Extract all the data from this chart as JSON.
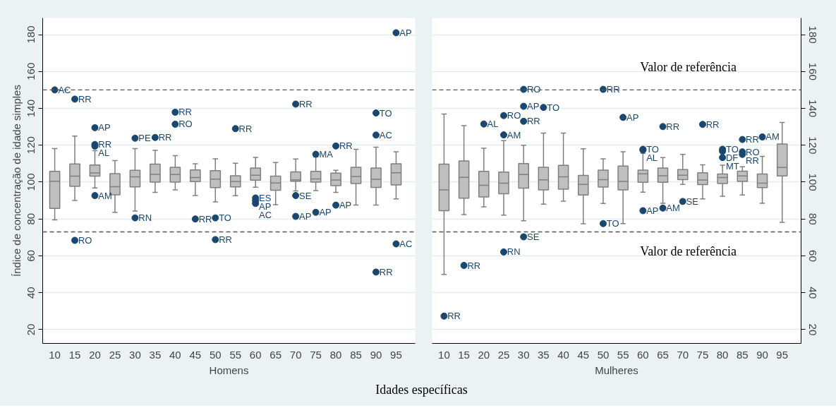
{
  "chart_data": [
    {
      "type": "box",
      "xlabel": "Homens",
      "ylabel": "Índice de concentração de idade simples",
      "categories": [
        "10",
        "15",
        "20",
        "25",
        "30",
        "35",
        "40",
        "45",
        "50",
        "55",
        "60",
        "65",
        "70",
        "75",
        "80",
        "85",
        "90",
        "95"
      ],
      "ylim": [
        12.5,
        189
      ],
      "yticks": [
        20,
        40,
        60,
        80,
        100,
        120,
        140,
        160,
        180
      ],
      "grid": "y",
      "ref_lines": [
        {
          "axis": "y",
          "value": 150,
          "line_style": "dashed"
        },
        {
          "axis": "y",
          "value": 73,
          "line_style": "dashed"
        }
      ],
      "series": [
        {
          "color": "#bfbfbf",
          "boxes": [
            {
              "low": 79.5,
              "q1": 85.7,
              "median": 100.5,
              "q3": 105.8,
              "high": 118.2
            },
            {
              "low": 90.0,
              "q1": 97.7,
              "median": 103.2,
              "q3": 109.8,
              "high": 125
            },
            {
              "low": 96.8,
              "q1": 103.2,
              "median": 105,
              "q3": 109.3,
              "high": 117
            },
            {
              "low": 83.6,
              "q1": 93.1,
              "median": 97.5,
              "q3": 104.6,
              "high": 111.7
            },
            {
              "low": 84.3,
              "q1": 97.4,
              "median": 102.9,
              "q3": 106.4,
              "high": 118.2
            },
            {
              "low": 94.4,
              "q1": 100,
              "median": 104.2,
              "q3": 109.7,
              "high": 117.2
            },
            {
              "low": 95.8,
              "q1": 100,
              "median": 104.1,
              "q3": 108,
              "high": 114.3
            },
            {
              "low": 92.7,
              "q1": 100.3,
              "median": 102.5,
              "q3": 106.6,
              "high": 109.9
            },
            {
              "low": 89.3,
              "q1": 97,
              "median": 101.6,
              "q3": 106.2,
              "high": 112.6
            },
            {
              "low": 92.6,
              "q1": 97.4,
              "median": 100.3,
              "q3": 103.4,
              "high": 110.2
            },
            {
              "low": 97.2,
              "q1": 101,
              "median": 103.7,
              "q3": 107.6,
              "high": 113.4
            },
            {
              "low": 87.7,
              "q1": 95.6,
              "median": 99.5,
              "q3": 103.2,
              "high": 110.6
            },
            {
              "low": 95.2,
              "q1": 100.5,
              "median": 101.2,
              "q3": 105.5,
              "high": 112.5
            },
            {
              "low": 95.4,
              "q1": 100,
              "median": 101.7,
              "q3": 105.8,
              "high": 113.7
            },
            {
              "low": 94.4,
              "q1": 98.1,
              "median": 101.1,
              "q3": 104.9,
              "high": 106.4
            },
            {
              "low": 87.5,
              "q1": 99.2,
              "median": 103,
              "q3": 108,
              "high": 117.8
            },
            {
              "low": 87.5,
              "q1": 97.1,
              "median": 101.5,
              "q3": 107.6,
              "high": 118.9
            },
            {
              "low": 90.9,
              "q1": 98.5,
              "median": 105.1,
              "q3": 109.9,
              "high": 116.4
            }
          ]
        },
        {
          "type": "scatter",
          "color": "#1a476f",
          "x": [
            "10",
            "15",
            "15",
            "20",
            "20",
            "20",
            "20",
            "30",
            "30",
            "35",
            "40",
            "40",
            "45",
            "50",
            "50",
            "55",
            "60",
            "60",
            "60",
            "70",
            "70",
            "70",
            "75",
            "75",
            "80",
            "80",
            "90",
            "90",
            "90",
            "95",
            "95"
          ],
          "values": [
            150,
            145,
            68.4,
            129.5,
            120.4,
            119.5,
            92.7,
            123.8,
            80.6,
            124.2,
            137.9,
            131.4,
            80,
            80.6,
            68.8,
            129,
            91.4,
            89.9,
            88.4,
            142.3,
            92.7,
            81.4,
            115.1,
            83.6,
            119.6,
            87.5,
            137.5,
            125.5,
            51.2,
            181,
            66.5
          ],
          "value_labels": [
            "AC",
            "RR",
            "RO",
            "AP",
            "RR",
            "AL",
            "AM",
            "PE",
            "RN",
            "RR",
            "RR",
            "RO",
            "RR",
            "TO",
            "RR",
            "RR",
            "ES",
            "AP",
            "AC",
            "RR",
            "SE",
            "AP",
            "MA",
            "AP",
            "RR",
            "AP",
            "TO",
            "AC",
            "RR",
            "AP",
            "AC"
          ]
        }
      ],
      "annotations": [
        "Idades específicas"
      ]
    },
    {
      "type": "box",
      "xlabel": "Mulheres",
      "categories": [
        "10",
        "15",
        "20",
        "25",
        "30",
        "35",
        "40",
        "45",
        "50",
        "55",
        "60",
        "65",
        "70",
        "75",
        "80",
        "85",
        "90",
        "95"
      ],
      "ylim": [
        12.5,
        189
      ],
      "yticks": [
        20,
        40,
        60,
        80,
        100,
        120,
        140,
        160,
        180
      ],
      "grid": "y",
      "ref_lines": [
        {
          "axis": "y",
          "value": 150,
          "line_style": "dashed",
          "label": "Valor de referência"
        },
        {
          "axis": "y",
          "value": 73,
          "line_style": "dashed",
          "label": "Valor de referência"
        }
      ],
      "series": [
        {
          "color": "#bfbfbf",
          "boxes": [
            {
              "low": 49.9,
              "q1": 84.5,
              "median": 95.8,
              "q3": 109.7,
              "high": 136.9
            },
            {
              "low": 82.4,
              "q1": 91.3,
              "median": 102.6,
              "q3": 111.5,
              "high": 130.6
            },
            {
              "low": 86.6,
              "q1": 91.9,
              "median": 98.3,
              "q3": 105.8,
              "high": 118.4
            },
            {
              "low": 82.1,
              "q1": 93.7,
              "median": 99.4,
              "q3": 105.4,
              "high": 122.5
            },
            {
              "low": 79,
              "q1": 96.7,
              "median": 104.1,
              "q3": 110,
              "high": 120
            },
            {
              "low": 88,
              "q1": 95.8,
              "median": 101.2,
              "q3": 108,
              "high": 126.6
            },
            {
              "low": 89.6,
              "q1": 96.2,
              "median": 102.9,
              "q3": 109.1,
              "high": 126.6
            },
            {
              "low": 77.4,
              "q1": 93,
              "median": 98.7,
              "q3": 103.6,
              "high": 118.1
            },
            {
              "low": 88.4,
              "q1": 97.3,
              "median": 101.3,
              "q3": 106.5,
              "high": 112.6
            },
            {
              "low": 77.5,
              "q1": 95.8,
              "median": 100.4,
              "q3": 108.7,
              "high": 116.4
            },
            {
              "low": 94.5,
              "q1": 99.9,
              "median": 104.5,
              "q3": 106.5,
              "high": 115.6
            },
            {
              "low": 88.5,
              "q1": 99.9,
              "median": 103.4,
              "q3": 107.6,
              "high": 113.3
            },
            {
              "low": 98.7,
              "q1": 101.3,
              "median": 103.7,
              "q3": 106.8,
              "high": 115
            },
            {
              "low": 90.9,
              "q1": 98.6,
              "median": 101.1,
              "q3": 105.1,
              "high": 109.4
            },
            {
              "low": 92.3,
              "q1": 99.2,
              "median": 102.5,
              "q3": 104.4,
              "high": 109.2
            },
            {
              "low": 93,
              "q1": 100.4,
              "median": 103.3,
              "q3": 105.9,
              "high": 108.3
            },
            {
              "low": 88.5,
              "q1": 97,
              "median": 99.4,
              "q3": 104.4,
              "high": 114
            },
            {
              "low": 78.2,
              "q1": 103.3,
              "median": 107.9,
              "q3": 120.7,
              "high": 132.3
            }
          ]
        },
        {
          "type": "scatter",
          "color": "#1a476f",
          "x": [
            "10",
            "15",
            "20",
            "25",
            "25",
            "25",
            "30",
            "30",
            "30",
            "30",
            "35",
            "50",
            "50",
            "55",
            "60",
            "60",
            "60",
            "65",
            "65",
            "70",
            "75",
            "80",
            "80",
            "80",
            "85",
            "85",
            "85",
            "90"
          ],
          "values": [
            27.3,
            54.8,
            131.5,
            136.1,
            125.6,
            62.1,
            150.3,
            141.1,
            133,
            70.3,
            140.5,
            150.3,
            77.5,
            135.1,
            117.8,
            117.4,
            84.5,
            130.1,
            85.9,
            89.5,
            131.3,
            117.8,
            116.7,
            113.3,
            123.1,
            116.4,
            115,
            124.5
          ],
          "value_labels": [
            "RR",
            "RR",
            "AL",
            "RO",
            "AM",
            "RN",
            "RO",
            "AP",
            "RR",
            "SE",
            "TO",
            "RR",
            "TO",
            "AP",
            "TO",
            "AL",
            "AP",
            "RR",
            "AM",
            "SE",
            "RR",
            "TO",
            "DF",
            "MT",
            "RR",
            "RO",
            "RR",
            "AM"
          ]
        }
      ]
    }
  ]
}
